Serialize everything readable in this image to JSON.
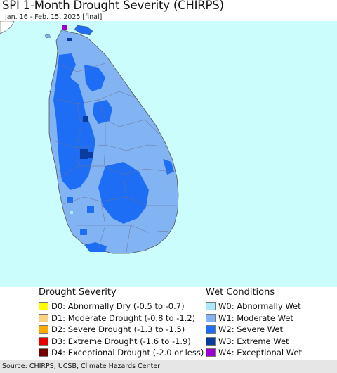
{
  "header": {
    "title": "SPI 1-Month Drought Severity (CHIRPS)",
    "subtitle": "Jan. 16 - Feb. 15, 2025 [final]"
  },
  "map": {
    "region": "Sri Lanka",
    "ocean_color": "#cbfdfd",
    "land_outside_color": "#ffffff",
    "base_wet_color": "#82b4f4",
    "district_border_color": "#6f6f8f"
  },
  "legend": {
    "drought": {
      "title": "Drought Severity",
      "items": [
        {
          "label": "D0: Abnormally Dry (-0.5 to -0.7)",
          "color": "#ffff00"
        },
        {
          "label": "D1: Moderate Drought (-0.8 to -1.2)",
          "color": "#fcd37f"
        },
        {
          "label": "D2: Severe Drought (-1.3 to -1.5)",
          "color": "#ffaa00"
        },
        {
          "label": "D3: Extreme Drought (-1.6 to -1.9)",
          "color": "#e60000"
        },
        {
          "label": "D4: Exceptional Drought (-2.0 or less)",
          "color": "#730000"
        }
      ]
    },
    "wet": {
      "title": "Wet Conditions",
      "items": [
        {
          "label": "W0: Abnormally Wet",
          "color": "#aae8fa"
        },
        {
          "label": "W1: Moderate Wet",
          "color": "#82b4f4"
        },
        {
          "label": "W2: Severe Wet",
          "color": "#1e6ef5"
        },
        {
          "label": "W3: Extreme Wet",
          "color": "#0a3ca0"
        },
        {
          "label": "W4: Exceptional Wet",
          "color": "#9b00d2"
        }
      ]
    }
  },
  "footer": {
    "source": "Source: CHIRPS, UCSB, Climate Hazards Center"
  }
}
